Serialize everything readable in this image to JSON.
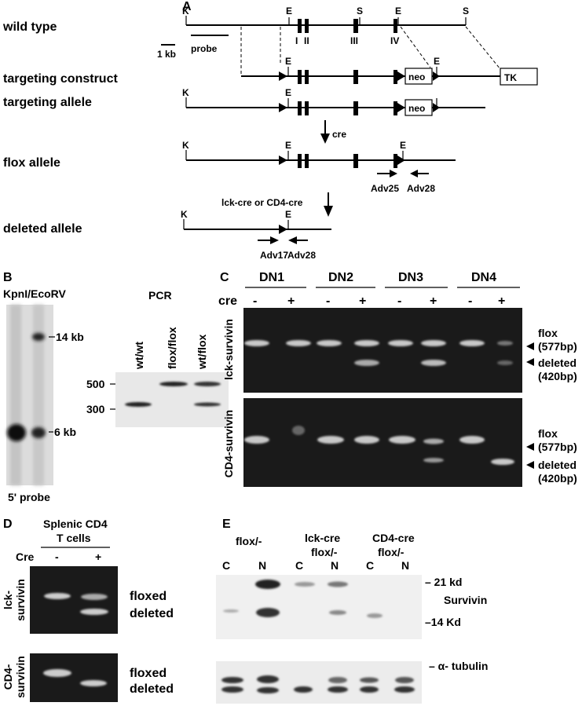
{
  "panel_a": {
    "label": "A",
    "rows": [
      "wild type",
      "targeting construct",
      "targeting allele",
      "flox allele",
      "deleted allele"
    ],
    "site_labels": [
      "K",
      "E",
      "S",
      "E",
      "S",
      "E",
      "E",
      "K",
      "E",
      "K",
      "E",
      "E",
      "K",
      "E"
    ],
    "exon_labels": [
      "I",
      "II",
      "III",
      "IV"
    ],
    "scale": "1 kb",
    "probe": "probe",
    "cassettes": [
      "neo",
      "TK",
      "neo"
    ],
    "enzyme_steps": [
      "cre",
      "lck-cre or CD4-cre"
    ],
    "primers": [
      "Adv25",
      "Adv28",
      "Adv17",
      "Adv28"
    ]
  },
  "panel_b": {
    "label": "B",
    "southern_title": "KpnI/EcoRV",
    "southern_markers": [
      "14 kb",
      "6 kb"
    ],
    "southern_probe": "5' probe",
    "pcr_title": "PCR",
    "pcr_lanes": [
      "wt/wt",
      "flox/flox",
      "wt/flox"
    ],
    "pcr_size_labels": [
      "500",
      "300"
    ]
  },
  "panel_c": {
    "label": "C",
    "stages": [
      "DN1",
      "DN2",
      "DN3",
      "DN4"
    ],
    "cre_label": "cre",
    "lane_signs": [
      "-",
      "+",
      "-",
      "+",
      "-",
      "+",
      "-",
      "+"
    ],
    "rows": [
      "lck-survivin",
      "CD4-survivin"
    ],
    "band_labels": [
      [
        "flox",
        "(577bp)",
        "deleted",
        "(420bp)"
      ],
      [
        "flox",
        "(577bp)",
        "deleted",
        "(420bp)"
      ]
    ]
  },
  "panel_d": {
    "label": "D",
    "title": [
      "Splenic CD4",
      "T cells"
    ],
    "cre_label": "Cre",
    "lane_signs": [
      "-",
      "+"
    ],
    "rows": [
      [
        "lck-",
        "survivin"
      ],
      [
        "CD4-",
        "survivin"
      ]
    ],
    "band_labels": [
      [
        "floxed",
        "deleted"
      ],
      [
        "floxed",
        "deleted"
      ]
    ]
  },
  "panel_e": {
    "label": "E",
    "groups": [
      [
        "flox/-"
      ],
      [
        "lck-cre",
        "flox/-"
      ],
      [
        "CD4-cre",
        "flox/-"
      ]
    ],
    "lanes": [
      "C",
      "N",
      "C",
      "N",
      "C",
      "N"
    ],
    "markers": [
      "– 21 kd",
      "–14 Kd"
    ],
    "protein": "Survivin",
    "loading": "– α- tubulin"
  }
}
